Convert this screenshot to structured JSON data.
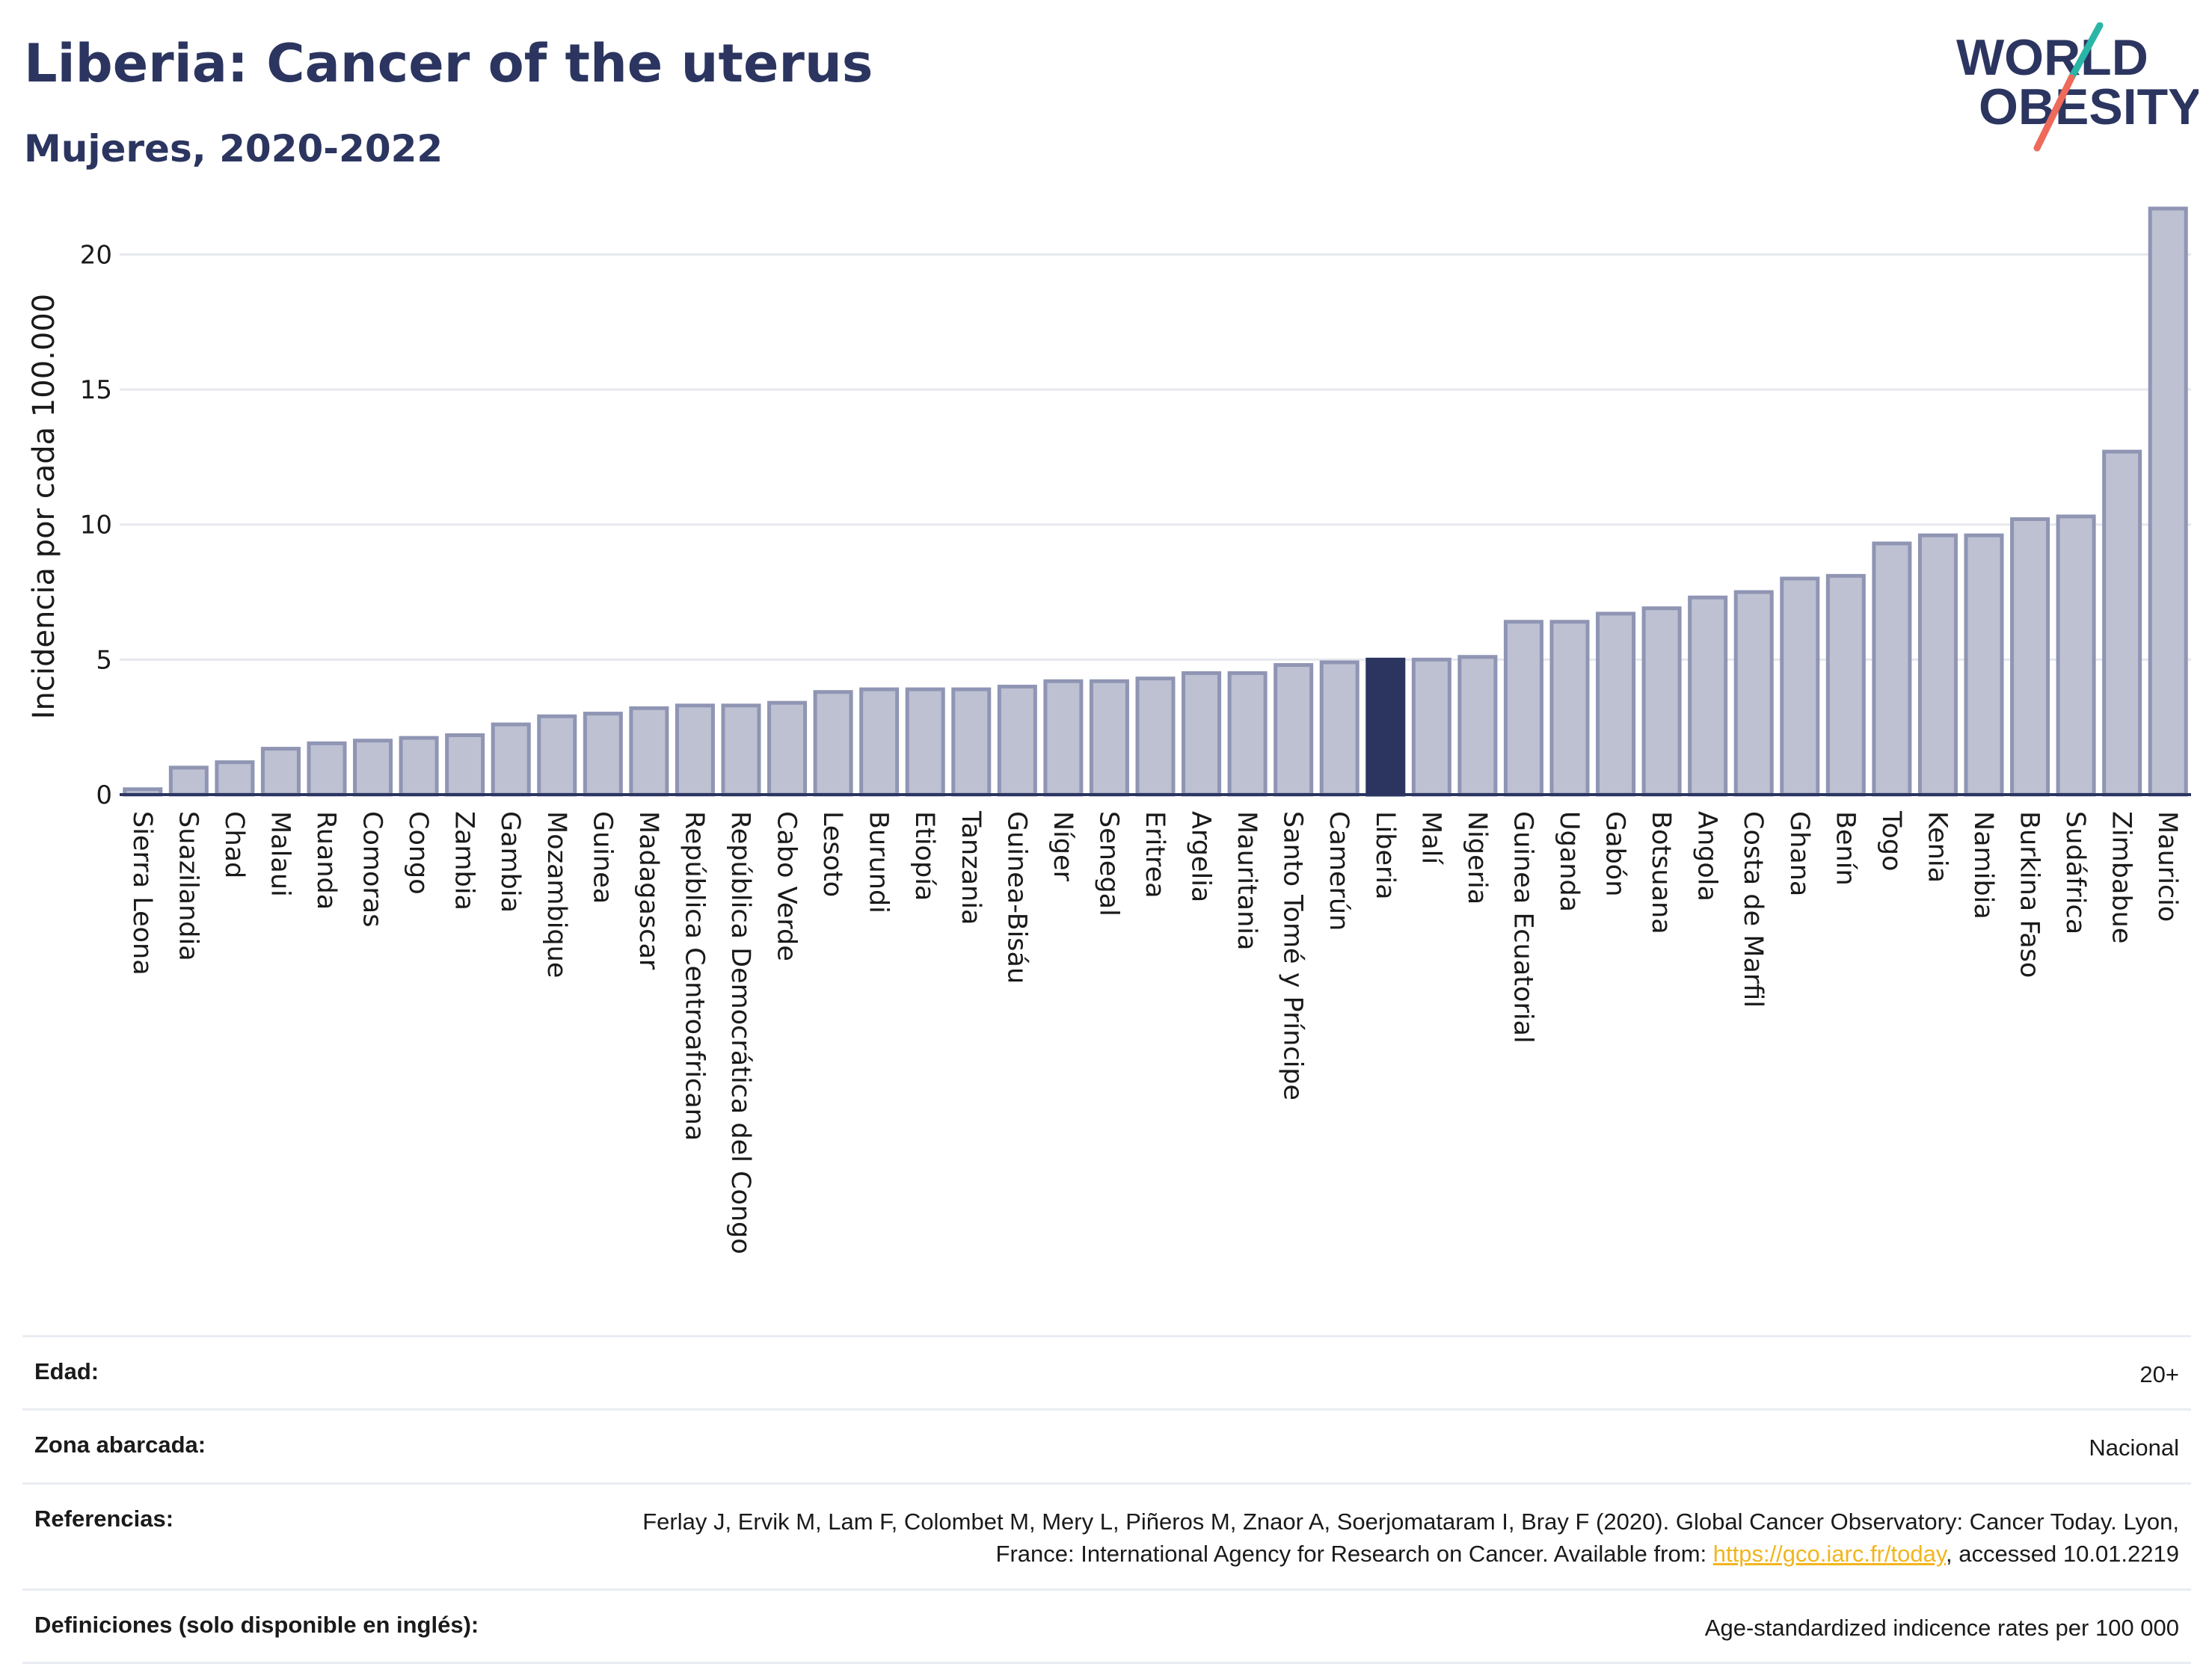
{
  "header": {
    "title": "Liberia: Cancer of the uterus",
    "subtitle": "Mujeres, 2020-2022"
  },
  "logo": {
    "line1": "WORLD",
    "line2": "OBESITY"
  },
  "colors": {
    "bar": "#bdc1d2",
    "bar_border": "#8f95b3",
    "highlight": "#2b3560",
    "grid": "#e6e8ee",
    "text": "#2b3560",
    "link": "#f2b51d"
  },
  "chart_data": {
    "type": "bar",
    "ylabel": "Incidencia por cada 100.000",
    "ylim": [
      0,
      23
    ],
    "yticks": [
      0,
      5,
      10,
      15,
      20
    ],
    "highlight": "Liberia",
    "categories": [
      "Sierra Leona",
      "Suazilandia",
      "Chad",
      "Malaui",
      "Ruanda",
      "Comoras",
      "Congo",
      "Zambia",
      "Gambia",
      "Mozambique",
      "Guinea",
      "Madagascar",
      "República Centroafricana",
      "República Democrática del Congo",
      "Cabo Verde",
      "Lesoto",
      "Burundi",
      "Etiopía",
      "Tanzania",
      "Guinea-Bisáu",
      "Níger",
      "Senegal",
      "Eritrea",
      "Argelia",
      "Mauritania",
      "Santo Tomé y Príncipe",
      "Camerún",
      "Liberia",
      "Malí",
      "Nigeria",
      "Guinea Ecuatorial",
      "Uganda",
      "Gabón",
      "Botsuana",
      "Angola",
      "Costa de Marfil",
      "Ghana",
      "Benín",
      "Togo",
      "Kenia",
      "Namibia",
      "Burkina Faso",
      "Sudáfrica",
      "Zimbabue",
      "Mauricio"
    ],
    "values": [
      0.2,
      1.0,
      1.2,
      1.7,
      1.9,
      2.0,
      2.1,
      2.2,
      2.6,
      2.9,
      3.0,
      3.2,
      3.3,
      3.3,
      3.4,
      3.8,
      3.9,
      3.9,
      3.9,
      4.0,
      4.2,
      4.2,
      4.3,
      4.5,
      4.5,
      4.8,
      4.9,
      5.0,
      5.0,
      5.1,
      6.4,
      6.4,
      6.7,
      6.9,
      7.3,
      7.5,
      8.0,
      8.1,
      9.3,
      9.6,
      9.6,
      10.2,
      10.3,
      12.7,
      21.7
    ]
  },
  "info": [
    {
      "label": "Edad:",
      "value": "20+"
    },
    {
      "label": "Zona abarcada:",
      "value": "Nacional"
    },
    {
      "label": "Referencias:",
      "value_before": "Ferlay J, Ervik M, Lam F, Colombet M, Mery L, Piñeros M, Znaor A, Soerjomataram I, Bray F (2020). Global Cancer Observatory: Cancer Today. Lyon, France: International Agency for Research on Cancer. Available from: ",
      "link": "https://gco.iarc.fr/today",
      "value_after": ", accessed 10.01.2219"
    },
    {
      "label": "Definiciones (solo disponible en inglés):",
      "value": "Age-standardized indicence rates per 100 000"
    }
  ]
}
